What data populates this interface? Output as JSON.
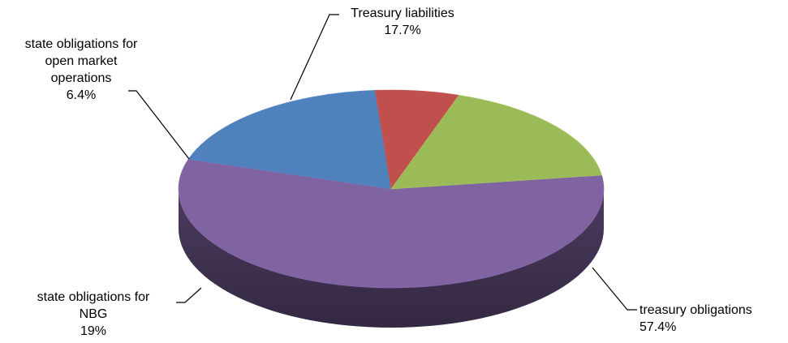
{
  "chart_data": {
    "type": "pie",
    "title": "",
    "slices": [
      {
        "label_lines": [
          "treasury obligations"
        ],
        "value_text": "57.4%",
        "value": 57.4,
        "color": "#8064A2"
      },
      {
        "label_lines": [
          "state obligations for",
          "NBG"
        ],
        "value_text": "19%",
        "value": 19,
        "color": "#4F81BD"
      },
      {
        "label_lines": [
          "state obligations for",
          "open market",
          "operations"
        ],
        "value_text": "6.4%",
        "value": 6.4,
        "color": "#C0504D"
      },
      {
        "label_lines": [
          "Treasury liabilities"
        ],
        "value_text": "17.7%",
        "value": 17.7,
        "color": "#9BBB59"
      }
    ],
    "legend": "none",
    "style": "3d-pie"
  }
}
